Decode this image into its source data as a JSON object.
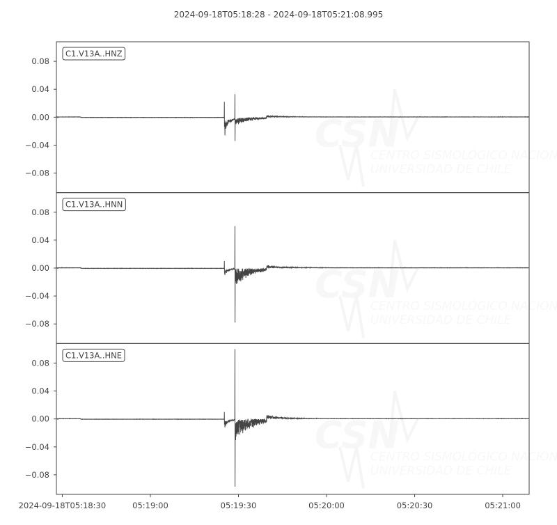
{
  "chart_data": {
    "type": "line",
    "title": "2024-09-18T05:18:28  -  2024-09-18T05:21:08.995",
    "start_time": "2024-09-18T05:18:28",
    "end_time": "2024-09-18T05:21:08.995",
    "x_ticks": [
      "2024-09-18T05:18:30",
      "05:19:00",
      "05:19:30",
      "05:20:00",
      "05:20:30",
      "05:21:00"
    ],
    "x_tick_seconds_from_start": [
      2,
      32,
      62,
      92,
      122,
      152
    ],
    "y_ticks": [
      0.08,
      0.04,
      0.0,
      -0.04,
      -0.08
    ],
    "y_tick_labels": [
      "0.08",
      "0.04",
      "0.00",
      "−0.04",
      "−0.08"
    ],
    "ylim": [
      -0.108,
      0.108
    ],
    "grid": false,
    "line_color": "#444444",
    "series": [
      {
        "name": "C1.V13A..HNZ",
        "p_onset_s": 57.2,
        "s_onset_s": 60.8,
        "p_peak": 0.022,
        "p_trough": -0.026,
        "s_peak": 0.033,
        "s_trough": -0.034,
        "noise": 0.0006
      },
      {
        "name": "C1.V13A..HNN",
        "p_onset_s": 57.2,
        "s_onset_s": 60.8,
        "p_peak": 0.01,
        "p_trough": -0.01,
        "s_peak": 0.06,
        "s_trough": -0.078,
        "noise": 0.0006
      },
      {
        "name": "C1.V13A..HNE",
        "p_onset_s": 57.2,
        "s_onset_s": 60.8,
        "p_peak": 0.01,
        "p_trough": -0.012,
        "s_peak": 0.1,
        "s_trough": -0.097,
        "noise": 0.0006
      }
    ]
  },
  "watermark": {
    "logo": "CSN",
    "line1": "CENTRO SISMOLÓGICO NACIONAL",
    "line2": "UNIVERSIDAD DE CHILE"
  }
}
